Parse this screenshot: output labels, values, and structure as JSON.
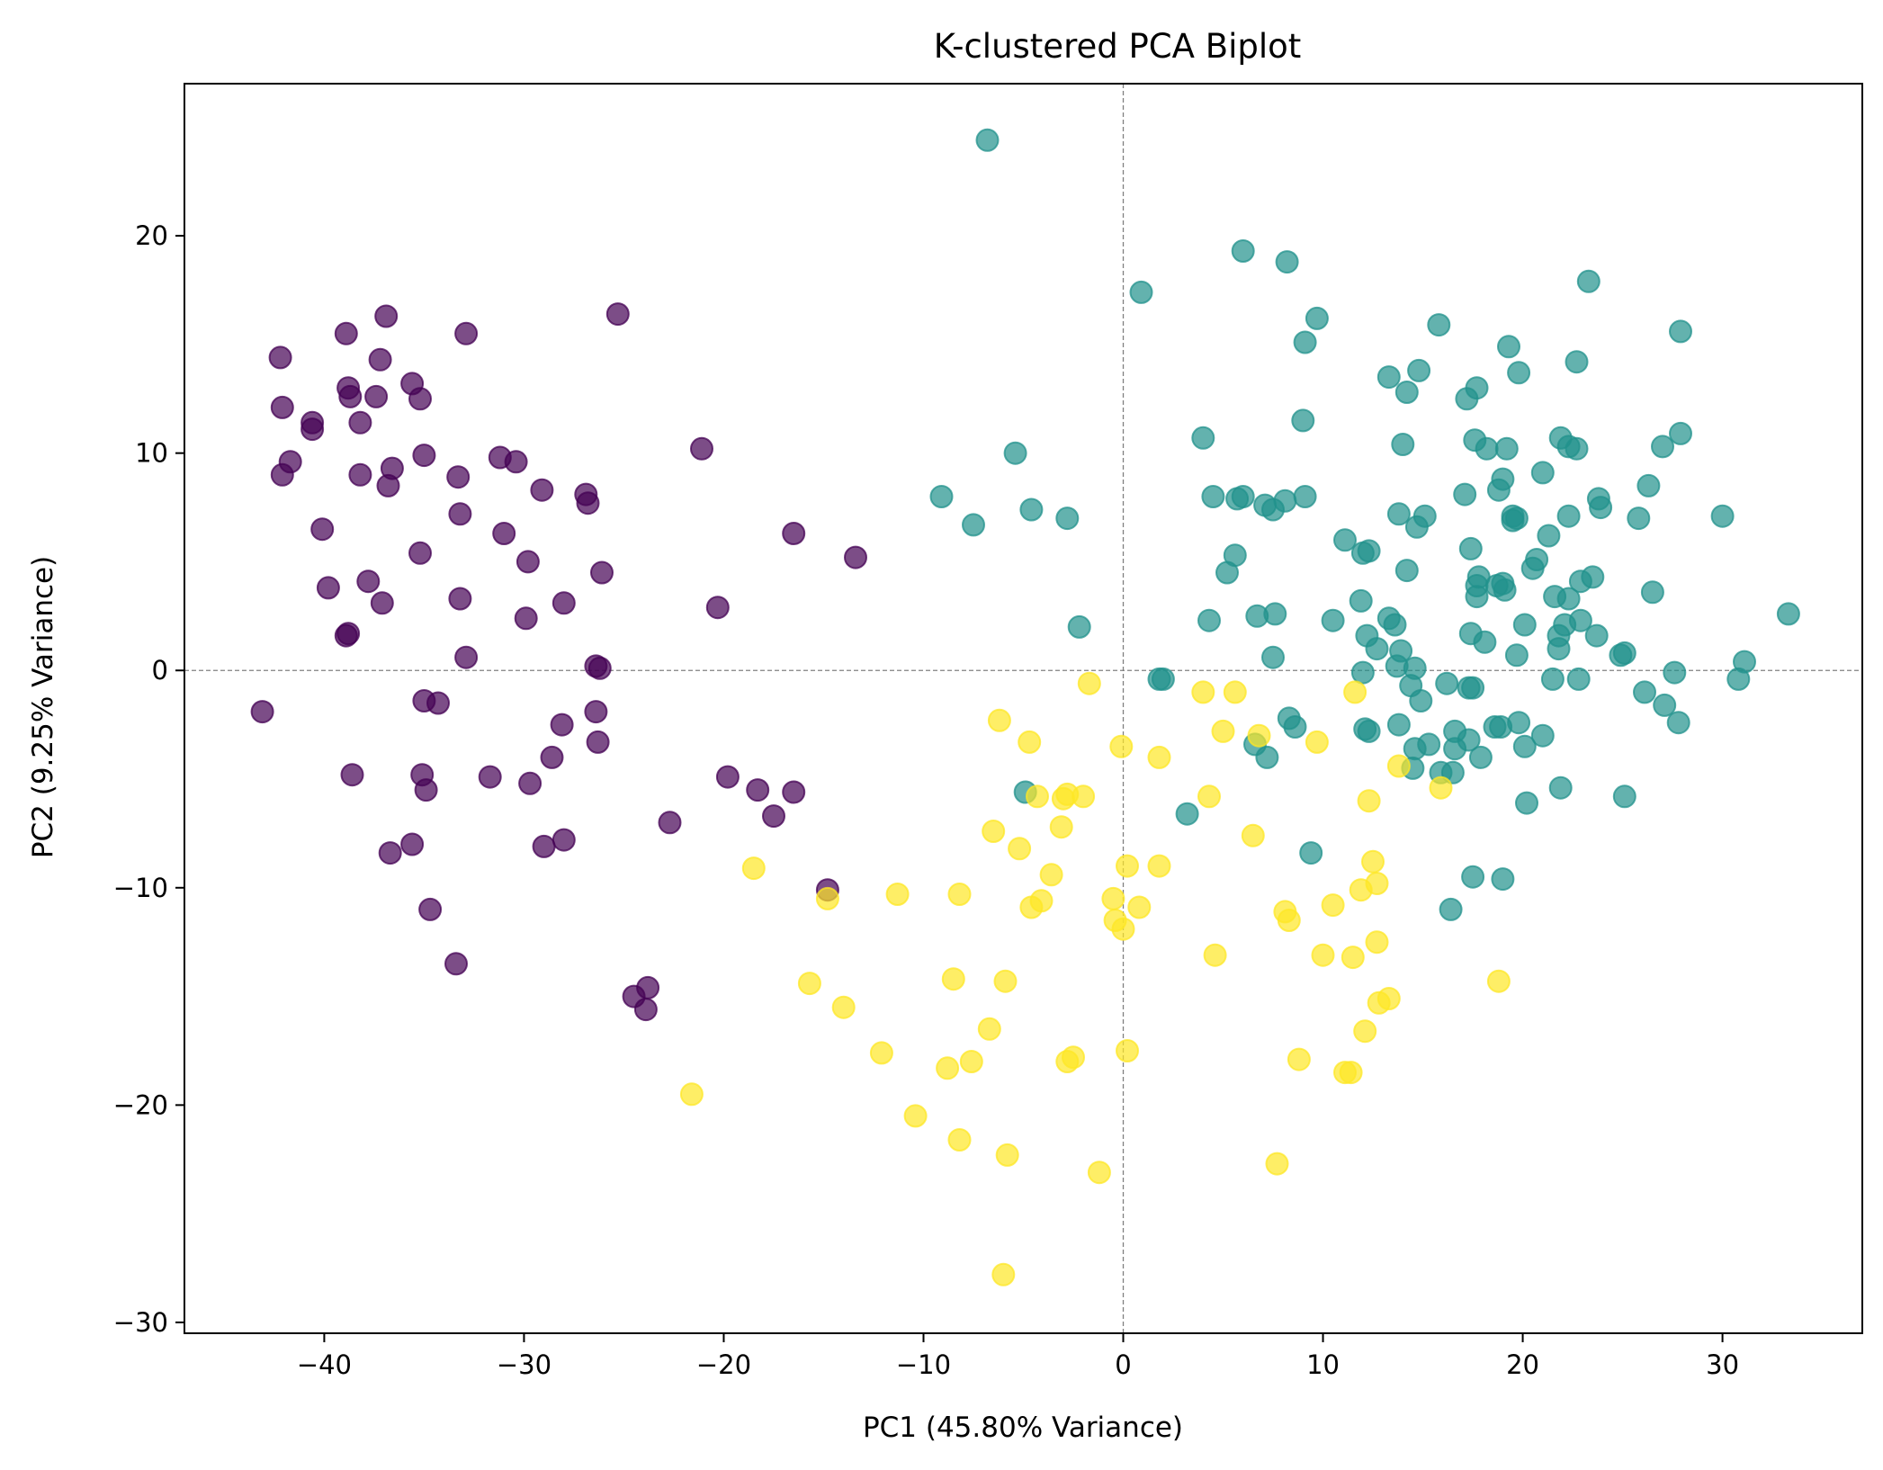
{
  "chart_data": {
    "type": "scatter",
    "title": "K-clustered PCA Biplot",
    "xlabel": "PC1 (45.80% Variance)",
    "ylabel": "PC2 (9.25% Variance)",
    "xlim": [
      -47,
      37
    ],
    "ylim": [
      -30.5,
      27
    ],
    "xticks": [
      -40,
      -30,
      -20,
      -10,
      0,
      10,
      20,
      30
    ],
    "yticks": [
      -30,
      -20,
      -10,
      0,
      10,
      20
    ],
    "xtick_labels": [
      "−40",
      "−30",
      "−20",
      "−10",
      "0",
      "10",
      "20",
      "30"
    ],
    "ytick_labels": [
      "−30",
      "−20",
      "−10",
      "0",
      "10",
      "20"
    ],
    "grid": false,
    "reference_lines": {
      "x": 0,
      "y": 0,
      "style": "dashed",
      "color": "#808080"
    },
    "series": [
      {
        "color": "#440154",
        "points": [
          [
            -43.1,
            -1.9
          ],
          [
            -42.2,
            14.4
          ],
          [
            -42.1,
            12.1
          ],
          [
            -42.1,
            9.0
          ],
          [
            -41.7,
            9.6
          ],
          [
            -40.6,
            11.4
          ],
          [
            -40.6,
            11.1
          ],
          [
            -40.1,
            6.5
          ],
          [
            -39.8,
            3.8
          ],
          [
            -38.9,
            15.5
          ],
          [
            -38.8,
            13.0
          ],
          [
            -38.7,
            12.6
          ],
          [
            -38.9,
            1.6
          ],
          [
            -38.8,
            1.7
          ],
          [
            -38.6,
            -4.8
          ],
          [
            -38.2,
            11.4
          ],
          [
            -38.2,
            9.0
          ],
          [
            -37.8,
            4.1
          ],
          [
            -37.4,
            12.6
          ],
          [
            -37.2,
            14.3
          ],
          [
            -37.1,
            3.1
          ],
          [
            -36.9,
            16.3
          ],
          [
            -36.8,
            8.5
          ],
          [
            -36.6,
            9.3
          ],
          [
            -36.7,
            -8.4
          ],
          [
            -35.6,
            13.2
          ],
          [
            -35.6,
            -8.0
          ],
          [
            -35.2,
            12.5
          ],
          [
            -35.2,
            5.4
          ],
          [
            -35.0,
            9.9
          ],
          [
            -35.0,
            -1.4
          ],
          [
            -35.1,
            -4.8
          ],
          [
            -34.9,
            -5.5
          ],
          [
            -34.7,
            -11.0
          ],
          [
            -34.3,
            -1.5
          ],
          [
            -33.4,
            -13.5
          ],
          [
            -33.3,
            8.9
          ],
          [
            -33.2,
            7.2
          ],
          [
            -33.2,
            3.3
          ],
          [
            -32.9,
            15.5
          ],
          [
            -32.9,
            0.6
          ],
          [
            -31.7,
            -4.9
          ],
          [
            -31.2,
            9.8
          ],
          [
            -31.0,
            6.3
          ],
          [
            -30.4,
            9.6
          ],
          [
            -29.8,
            5.0
          ],
          [
            -29.9,
            2.4
          ],
          [
            -29.7,
            -5.2
          ],
          [
            -29.1,
            8.3
          ],
          [
            -29.0,
            -8.1
          ],
          [
            -28.6,
            -4.0
          ],
          [
            -28.0,
            3.1
          ],
          [
            -28.1,
            -2.5
          ],
          [
            -28.0,
            -7.8
          ],
          [
            -26.9,
            8.1
          ],
          [
            -26.8,
            7.7
          ],
          [
            -26.4,
            0.2
          ],
          [
            -26.4,
            -1.9
          ],
          [
            -26.3,
            -3.3
          ],
          [
            -26.1,
            4.5
          ],
          [
            -26.2,
            0.1
          ],
          [
            -25.3,
            16.4
          ],
          [
            -24.5,
            -15.0
          ],
          [
            -23.8,
            -14.6
          ],
          [
            -23.9,
            -15.6
          ],
          [
            -22.7,
            -7.0
          ],
          [
            -21.1,
            10.2
          ],
          [
            -20.3,
            2.9
          ],
          [
            -19.8,
            -4.9
          ],
          [
            -18.3,
            -5.5
          ],
          [
            -17.5,
            -6.7
          ],
          [
            -16.5,
            6.3
          ],
          [
            -16.5,
            -5.6
          ],
          [
            -13.4,
            5.2
          ],
          [
            -14.8,
            -10.1
          ]
        ]
      },
      {
        "color": "#21918c",
        "points": [
          [
            -6.8,
            24.4
          ],
          [
            -9.1,
            8.0
          ],
          [
            -7.5,
            6.7
          ],
          [
            -5.4,
            10.0
          ],
          [
            -4.6,
            7.4
          ],
          [
            -2.8,
            7.0
          ],
          [
            -2.2,
            2.0
          ],
          [
            -4.9,
            -5.6
          ],
          [
            0.9,
            17.4
          ],
          [
            1.8,
            -0.4
          ],
          [
            2.0,
            -0.4
          ],
          [
            3.2,
            -6.6
          ],
          [
            4.0,
            10.7
          ],
          [
            4.3,
            2.3
          ],
          [
            4.5,
            8.0
          ],
          [
            5.2,
            4.5
          ],
          [
            5.6,
            5.3
          ],
          [
            5.7,
            7.9
          ],
          [
            6.0,
            19.3
          ],
          [
            6.0,
            8.0
          ],
          [
            6.6,
            -3.4
          ],
          [
            6.7,
            2.5
          ],
          [
            7.1,
            7.6
          ],
          [
            7.2,
            -4.0
          ],
          [
            7.5,
            0.6
          ],
          [
            7.5,
            7.4
          ],
          [
            7.6,
            2.6
          ],
          [
            8.1,
            7.8
          ],
          [
            8.2,
            18.8
          ],
          [
            8.3,
            -2.2
          ],
          [
            8.6,
            -2.6
          ],
          [
            9.0,
            11.5
          ],
          [
            9.1,
            15.1
          ],
          [
            9.1,
            8.0
          ],
          [
            9.4,
            -8.4
          ],
          [
            9.7,
            16.2
          ],
          [
            10.5,
            2.3
          ],
          [
            11.1,
            6.0
          ],
          [
            11.9,
            3.2
          ],
          [
            12.0,
            5.4
          ],
          [
            12.0,
            -0.1
          ],
          [
            12.1,
            -2.7
          ],
          [
            12.2,
            1.6
          ],
          [
            12.3,
            5.5
          ],
          [
            12.3,
            -2.8
          ],
          [
            12.7,
            1.0
          ],
          [
            13.3,
            13.5
          ],
          [
            13.3,
            2.4
          ],
          [
            13.6,
            2.1
          ],
          [
            13.7,
            0.2
          ],
          [
            13.8,
            7.2
          ],
          [
            13.8,
            -2.5
          ],
          [
            13.9,
            0.9
          ],
          [
            14.0,
            10.4
          ],
          [
            14.2,
            12.8
          ],
          [
            14.2,
            4.6
          ],
          [
            14.4,
            -0.7
          ],
          [
            14.5,
            -4.5
          ],
          [
            14.6,
            -3.6
          ],
          [
            14.6,
            0.1
          ],
          [
            14.7,
            6.6
          ],
          [
            14.8,
            13.8
          ],
          [
            14.9,
            -1.4
          ],
          [
            15.1,
            7.1
          ],
          [
            15.3,
            -3.4
          ],
          [
            15.8,
            15.9
          ],
          [
            15.9,
            -4.7
          ],
          [
            16.2,
            -0.6
          ],
          [
            16.4,
            -11.0
          ],
          [
            16.5,
            -4.7
          ],
          [
            16.6,
            -2.8
          ],
          [
            16.6,
            -3.6
          ],
          [
            17.1,
            8.1
          ],
          [
            17.2,
            12.5
          ],
          [
            17.3,
            -0.8
          ],
          [
            17.3,
            -3.2
          ],
          [
            17.4,
            5.6
          ],
          [
            17.4,
            1.7
          ],
          [
            17.5,
            -0.8
          ],
          [
            17.5,
            -9.5
          ],
          [
            17.6,
            10.6
          ],
          [
            17.7,
            13.0
          ],
          [
            17.7,
            3.9
          ],
          [
            17.8,
            4.3
          ],
          [
            17.7,
            3.4
          ],
          [
            17.9,
            -4.0
          ],
          [
            18.1,
            1.3
          ],
          [
            18.2,
            10.2
          ],
          [
            18.6,
            -2.6
          ],
          [
            18.7,
            3.9
          ],
          [
            18.8,
            8.3
          ],
          [
            18.9,
            -2.6
          ],
          [
            19.0,
            4.0
          ],
          [
            19.0,
            8.8
          ],
          [
            19.0,
            -9.6
          ],
          [
            19.1,
            3.7
          ],
          [
            19.2,
            10.2
          ],
          [
            19.3,
            14.9
          ],
          [
            19.5,
            6.9
          ],
          [
            19.5,
            7.1
          ],
          [
            19.7,
            7.0
          ],
          [
            19.7,
            0.7
          ],
          [
            19.8,
            13.7
          ],
          [
            19.8,
            -2.4
          ],
          [
            20.1,
            2.1
          ],
          [
            20.1,
            -3.5
          ],
          [
            20.2,
            -6.1
          ],
          [
            20.5,
            4.7
          ],
          [
            20.7,
            5.1
          ],
          [
            21.0,
            9.1
          ],
          [
            21.0,
            -3.0
          ],
          [
            21.3,
            6.2
          ],
          [
            21.5,
            -0.4
          ],
          [
            21.6,
            3.4
          ],
          [
            21.8,
            1.0
          ],
          [
            21.8,
            1.6
          ],
          [
            21.9,
            10.7
          ],
          [
            21.9,
            -5.4
          ],
          [
            22.1,
            2.1
          ],
          [
            22.3,
            10.3
          ],
          [
            22.3,
            7.1
          ],
          [
            22.3,
            3.3
          ],
          [
            22.7,
            10.2
          ],
          [
            22.7,
            14.2
          ],
          [
            22.8,
            -0.4
          ],
          [
            22.9,
            4.1
          ],
          [
            22.9,
            2.3
          ],
          [
            23.3,
            17.9
          ],
          [
            23.5,
            4.3
          ],
          [
            23.7,
            1.6
          ],
          [
            23.8,
            7.9
          ],
          [
            23.9,
            7.5
          ],
          [
            24.9,
            0.7
          ],
          [
            25.1,
            0.8
          ],
          [
            25.1,
            -5.8
          ],
          [
            25.8,
            7.0
          ],
          [
            26.1,
            -1.0
          ],
          [
            26.3,
            8.5
          ],
          [
            26.5,
            3.6
          ],
          [
            27.0,
            10.3
          ],
          [
            27.1,
            -1.6
          ],
          [
            27.6,
            -0.1
          ],
          [
            27.8,
            -2.4
          ],
          [
            27.9,
            15.6
          ],
          [
            27.9,
            10.9
          ],
          [
            30.0,
            7.1
          ],
          [
            30.8,
            -0.4
          ],
          [
            31.1,
            0.4
          ],
          [
            33.3,
            2.6
          ]
        ]
      },
      {
        "color": "#fde725",
        "points": [
          [
            -21.6,
            -19.5
          ],
          [
            -18.5,
            -9.1
          ],
          [
            -15.7,
            -14.4
          ],
          [
            -14.8,
            -10.5
          ],
          [
            -14.0,
            -15.5
          ],
          [
            -12.1,
            -17.6
          ],
          [
            -11.3,
            -10.3
          ],
          [
            -10.4,
            -20.5
          ],
          [
            -8.8,
            -18.3
          ],
          [
            -8.5,
            -14.2
          ],
          [
            -8.2,
            -21.6
          ],
          [
            -8.2,
            -10.3
          ],
          [
            -7.6,
            -18.0
          ],
          [
            -6.7,
            -16.5
          ],
          [
            -6.5,
            -7.4
          ],
          [
            -6.2,
            -2.3
          ],
          [
            -6.0,
            -27.8
          ],
          [
            -5.9,
            -14.3
          ],
          [
            -5.8,
            -22.3
          ],
          [
            -5.2,
            -8.2
          ],
          [
            -4.7,
            -3.3
          ],
          [
            -4.6,
            -10.9
          ],
          [
            -4.3,
            -5.8
          ],
          [
            -4.1,
            -10.6
          ],
          [
            -3.6,
            -9.4
          ],
          [
            -3.0,
            -5.9
          ],
          [
            -3.1,
            -7.2
          ],
          [
            -2.8,
            -18.0
          ],
          [
            -2.8,
            -5.7
          ],
          [
            -2.5,
            -17.8
          ],
          [
            -2.0,
            -5.8
          ],
          [
            -1.7,
            -0.6
          ],
          [
            -1.2,
            -23.1
          ],
          [
            -0.5,
            -10.5
          ],
          [
            -0.4,
            -11.5
          ],
          [
            -0.1,
            -3.5
          ],
          [
            0.0,
            -11.9
          ],
          [
            0.2,
            -9.0
          ],
          [
            0.2,
            -17.5
          ],
          [
            0.8,
            -10.9
          ],
          [
            1.8,
            -4.0
          ],
          [
            1.8,
            -9.0
          ],
          [
            4.0,
            -1.0
          ],
          [
            4.3,
            -5.8
          ],
          [
            4.6,
            -13.1
          ],
          [
            5.0,
            -2.8
          ],
          [
            5.6,
            -1.0
          ],
          [
            6.5,
            -7.6
          ],
          [
            6.8,
            -3.0
          ],
          [
            7.7,
            -22.7
          ],
          [
            8.1,
            -11.1
          ],
          [
            8.3,
            -11.5
          ],
          [
            8.8,
            -17.9
          ],
          [
            9.7,
            -3.3
          ],
          [
            10.0,
            -13.1
          ],
          [
            10.5,
            -10.8
          ],
          [
            11.1,
            -18.5
          ],
          [
            11.4,
            -18.5
          ],
          [
            11.5,
            -13.2
          ],
          [
            11.6,
            -1.0
          ],
          [
            11.9,
            -10.1
          ],
          [
            12.1,
            -16.6
          ],
          [
            12.3,
            -6.0
          ],
          [
            12.5,
            -8.8
          ],
          [
            12.7,
            -9.8
          ],
          [
            12.7,
            -12.5
          ],
          [
            12.8,
            -15.3
          ],
          [
            13.3,
            -15.1
          ],
          [
            13.8,
            -4.4
          ],
          [
            15.9,
            -5.4
          ],
          [
            18.8,
            -14.3
          ]
        ]
      }
    ]
  }
}
